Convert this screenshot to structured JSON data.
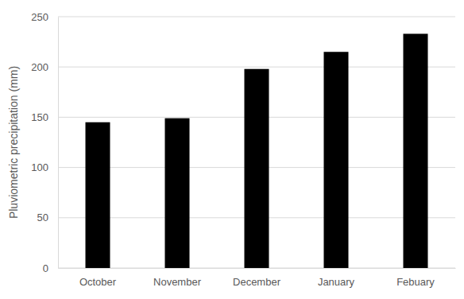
{
  "chart_data": {
    "type": "bar",
    "y_label": "Pluviometric precipitation (mm)",
    "categories": [
      "October",
      "November",
      "December",
      "January",
      "Febuary"
    ],
    "values": [
      145,
      149,
      198,
      215,
      233
    ],
    "color": "#000000",
    "ylim": [
      0,
      250
    ],
    "yticks": [
      0,
      50,
      100,
      150,
      200,
      250
    ],
    "grid": true
  }
}
